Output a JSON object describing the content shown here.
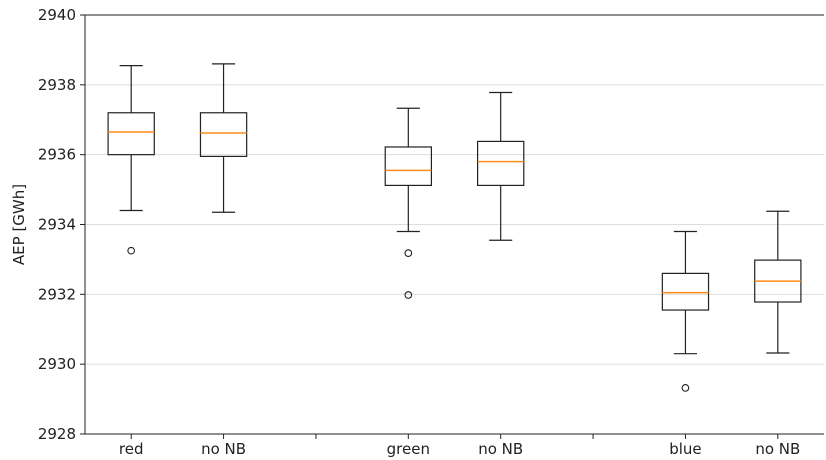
{
  "chart_data": {
    "type": "boxplot",
    "title": "",
    "xlabel": "",
    "ylabel": "AEP [GWh]",
    "ylim": [
      2928,
      2940
    ],
    "yticks": [
      2928,
      2930,
      2932,
      2934,
      2936,
      2938,
      2940
    ],
    "grid": "horizontal",
    "categories": [
      "red",
      "no NB",
      "",
      "green",
      "no NB",
      "",
      "blue",
      "no NB"
    ],
    "boxes": [
      {
        "label": "red",
        "whisker_low": 2934.4,
        "q1": 2936.0,
        "median": 2936.65,
        "q3": 2937.2,
        "whisker_high": 2938.55,
        "fliers": [
          2933.25
        ]
      },
      {
        "label": "no NB",
        "whisker_low": 2934.35,
        "q1": 2935.95,
        "median": 2936.62,
        "q3": 2937.2,
        "whisker_high": 2938.6,
        "fliers": []
      },
      {
        "label": "green",
        "whisker_low": 2933.8,
        "q1": 2935.12,
        "median": 2935.55,
        "q3": 2936.22,
        "whisker_high": 2937.33,
        "fliers": [
          2933.18,
          2931.98
        ]
      },
      {
        "label": "no NB",
        "whisker_low": 2933.55,
        "q1": 2935.12,
        "median": 2935.8,
        "q3": 2936.38,
        "whisker_high": 2937.78,
        "fliers": []
      },
      {
        "label": "blue",
        "whisker_low": 2930.3,
        "q1": 2931.55,
        "median": 2932.05,
        "q3": 2932.6,
        "whisker_high": 2933.8,
        "fliers": [
          2929.32
        ]
      },
      {
        "label": "no NB",
        "whisker_low": 2930.32,
        "q1": 2931.78,
        "median": 2932.38,
        "q3": 2932.98,
        "whisker_high": 2934.38,
        "fliers": []
      }
    ],
    "colors": {
      "box": "#222222",
      "median": "#ff8c1a",
      "grid": "#dddddd"
    }
  }
}
